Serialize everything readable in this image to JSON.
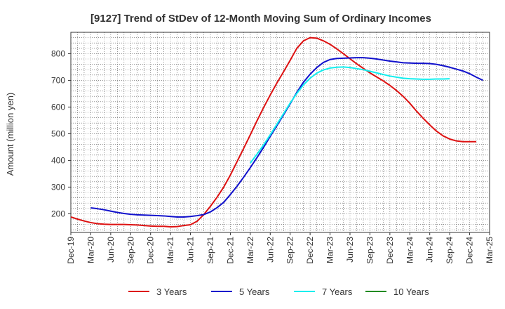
{
  "chart_data": {
    "type": "line",
    "title": "[9127]  Trend of StDev of 12-Month Moving Sum of Ordinary Incomes",
    "xlabel": "",
    "ylabel": "Amount (million yen)",
    "ylim": [
      130,
      880
    ],
    "yticks": [
      200,
      300,
      400,
      500,
      600,
      700,
      800
    ],
    "x_tick_labels": [
      "Dec-19",
      "Mar-20",
      "Jun-20",
      "Sep-20",
      "Dec-20",
      "Mar-21",
      "Jun-21",
      "Sep-21",
      "Dec-21",
      "Mar-22",
      "Jun-22",
      "Sep-22",
      "Dec-22",
      "Mar-23",
      "Jun-23",
      "Sep-23",
      "Dec-23",
      "Mar-24",
      "Jun-24",
      "Sep-24",
      "Dec-24",
      "Mar-25"
    ],
    "x_start": "Dec-19",
    "x_end": "Mar-25",
    "grid": true,
    "legend_position": "bottom",
    "series": [
      {
        "name": "3 Years",
        "color": "#dd1111",
        "start": "Dec-19",
        "values": [
          188,
          180,
          173,
          167,
          163,
          161,
          160,
          160,
          160,
          159,
          158,
          156,
          154,
          153,
          153,
          151,
          152,
          156,
          159,
          172,
          197,
          228,
          262,
          300,
          345,
          395,
          445,
          496,
          548,
          598,
          645,
          690,
          732,
          775,
          820,
          848,
          860,
          858,
          848,
          835,
          818,
          800,
          781,
          762,
          745,
          728,
          713,
          698,
          681,
          662,
          640,
          614,
          585,
          558,
          533,
          510,
          492,
          480,
          473,
          470,
          470,
          470
        ]
      },
      {
        "name": "5 Years",
        "color": "#1111cc",
        "start": "Mar-20",
        "values": [
          222,
          219,
          215,
          210,
          205,
          201,
          198,
          196,
          195,
          194,
          193,
          192,
          190,
          188,
          188,
          190,
          193,
          197,
          207,
          223,
          243,
          272,
          303,
          337,
          373,
          410,
          449,
          490,
          530,
          571,
          612,
          655,
          693,
          723,
          748,
          767,
          778,
          782,
          783,
          784,
          785,
          785,
          783,
          780,
          776,
          772,
          769,
          766,
          765,
          764,
          764,
          763,
          760,
          755,
          749,
          742,
          735,
          725,
          712,
          700
        ]
      },
      {
        "name": "7 Years",
        "color": "#11eeee",
        "start": "Mar-22",
        "values": [
          390,
          423,
          458,
          496,
          535,
          575,
          615,
          651,
          683,
          708,
          727,
          739,
          746,
          749,
          750,
          748,
          744,
          740,
          734,
          728,
          722,
          716,
          712,
          708,
          706,
          705,
          704,
          704,
          705,
          705,
          706
        ]
      },
      {
        "name": "10 Years",
        "color": "#228B22",
        "start": "Dec-24",
        "values": []
      }
    ]
  }
}
